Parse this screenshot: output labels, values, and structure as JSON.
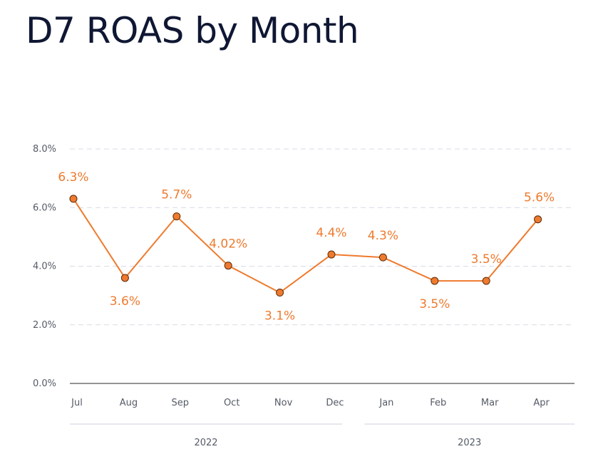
{
  "title": "D7 ROAS by Month",
  "chart_data": {
    "type": "line",
    "title": "D7 ROAS by Month",
    "categories": [
      "Jul",
      "Aug",
      "Sep",
      "Oct",
      "Nov",
      "Dec",
      "Jan",
      "Feb",
      "Mar",
      "Apr"
    ],
    "values": [
      6.3,
      3.6,
      5.7,
      4.02,
      3.1,
      4.4,
      4.3,
      3.5,
      3.5,
      5.6
    ],
    "value_labels": [
      "6.3%",
      "3.6%",
      "5.7%",
      "4.02%",
      "3.1%",
      "4.4%",
      "4.3%",
      "3.5%",
      "3.5%",
      "5.6%"
    ],
    "y_ticks": [
      "0.0%",
      "2.0%",
      "4.0%",
      "6.0%",
      "8.0%"
    ],
    "ylim": [
      0,
      8
    ],
    "year_groups": [
      {
        "label": "2022",
        "start": "Jul",
        "end": "Dec"
      },
      {
        "label": "2023",
        "start": "Jan",
        "end": "Apr"
      }
    ],
    "grid": true,
    "legend": "none",
    "colors": {
      "line": "#ee7a2e",
      "marker_edge": "#5a2a0a",
      "label": "#ee7a2e",
      "grid": "#d7dbe4",
      "axis": "#555555"
    }
  }
}
